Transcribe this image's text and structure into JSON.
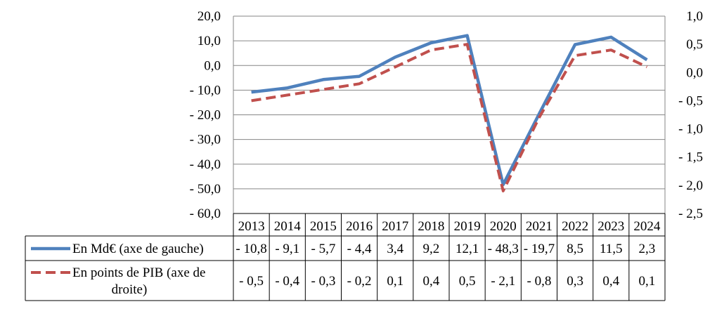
{
  "chart_data": {
    "type": "line",
    "categories": [
      "2013",
      "2014",
      "2015",
      "2016",
      "2017",
      "2018",
      "2019",
      "2020",
      "2021",
      "2022",
      "2023",
      "2024"
    ],
    "series": [
      {
        "name": "En Md€ (axe de gauche)",
        "axis": "left",
        "style": "solid",
        "color": "#4F81BD",
        "values": [
          -10.8,
          -9.1,
          -5.7,
          -4.4,
          3.4,
          9.2,
          12.1,
          -48.3,
          -19.7,
          8.5,
          11.5,
          2.3
        ],
        "table_labels": [
          "- 10,8",
          "- 9,1",
          "- 5,7",
          "- 4,4",
          "3,4",
          "9,2",
          "12,1",
          "- 48,3",
          "- 19,7",
          "8,5",
          "11,5",
          "2,3"
        ]
      },
      {
        "name": "En points de PIB (axe de droite)",
        "name_lines": [
          "En points de PIB (axe de",
          "droite)"
        ],
        "axis": "right",
        "style": "dashed",
        "color": "#C0504D",
        "values": [
          -0.5,
          -0.4,
          -0.3,
          -0.2,
          0.1,
          0.4,
          0.5,
          -2.1,
          -0.8,
          0.3,
          0.4,
          0.1
        ],
        "table_labels": [
          "- 0,5",
          "- 0,4",
          "- 0,3",
          "- 0,2",
          "0,1",
          "0,4",
          "0,5",
          "- 2,1",
          "- 0,8",
          "0,3",
          "0,4",
          "0,1"
        ]
      }
    ],
    "left_axis": {
      "ylim": [
        -60,
        20
      ],
      "ticks": [
        20,
        10,
        0,
        -10,
        -20,
        -30,
        -40,
        -50,
        -60
      ],
      "tick_labels": [
        "20,0",
        "10,0",
        "0,0",
        "- 10,0",
        "- 20,0",
        "- 30,0",
        "- 40,0",
        "- 50,0",
        "- 60,0"
      ]
    },
    "right_axis": {
      "ylim": [
        -2.5,
        1.0
      ],
      "ticks": [
        1.0,
        0.5,
        0.0,
        -0.5,
        -1.0,
        -1.5,
        -2.0,
        -2.5
      ],
      "tick_labels": [
        "1,0",
        "0,5",
        "0,0",
        "- 0,5",
        "- 1,0",
        "- 1,5",
        "- 2,0",
        "- 2,5"
      ]
    },
    "grid": "horizontal",
    "legend": "data-table"
  }
}
